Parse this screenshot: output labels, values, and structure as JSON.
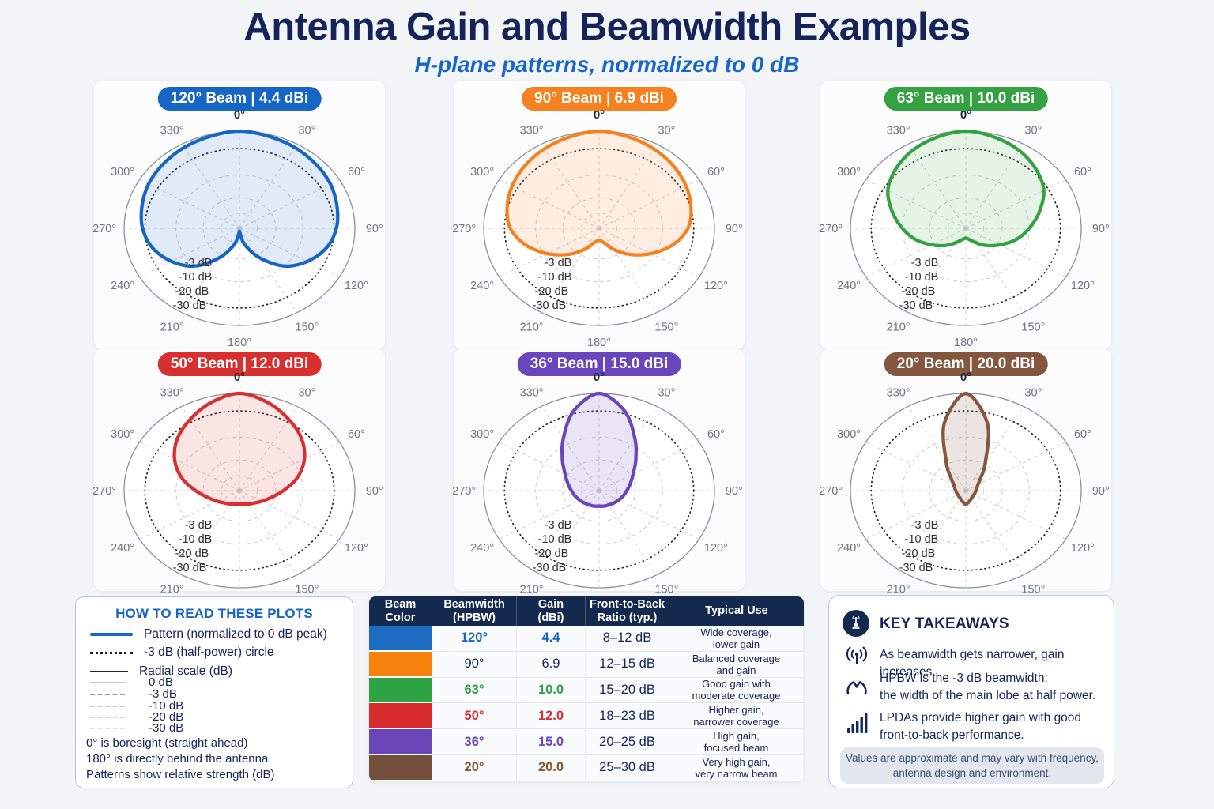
{
  "page": {
    "title": "Antenna Gain and Beamwidth Examples",
    "subtitle": "H-plane patterns, normalized to 0 dB",
    "background": "#f3f4f6"
  },
  "chart_data": {
    "type": "polar-patterns",
    "description": "Six normalized H-plane antenna patterns, 0 dB at outer ring",
    "angle_labels": [
      "0°",
      "30°",
      "60°",
      "90°",
      "120°",
      "150°",
      "180°",
      "210°",
      "240°",
      "270°",
      "300°",
      "330°"
    ],
    "ring_labels": [
      "-3 dB",
      "-10 dB",
      "-20 dB",
      "-30 dB"
    ],
    "ring_db": [
      -3,
      -10,
      -20,
      -30
    ],
    "ring_radii": [
      0.82,
      0.55,
      0.315,
      0.155
    ],
    "pattern_theta_step_deg": 15,
    "plots": [
      {
        "badge": "120° Beam | 4.4 dBi",
        "hpbw_deg": 120,
        "gain_dbi": 4.4,
        "color": "#1766c5",
        "fill": "rgba(23,102,197,0.13)",
        "show_180_label": true,
        "pattern_r": [
          1.0,
          0.98,
          0.96,
          0.935,
          0.91,
          0.875,
          0.84,
          0.78,
          0.68,
          0.55,
          0.35,
          0.17,
          0.03
        ]
      },
      {
        "badge": "90° Beam | 6.9 dBi",
        "hpbw_deg": 90,
        "gain_dbi": 6.9,
        "color": "#f68120",
        "fill": "rgba(246,129,32,0.14)",
        "show_180_label": true,
        "pattern_r": [
          1.0,
          0.975,
          0.945,
          0.91,
          0.87,
          0.825,
          0.77,
          0.66,
          0.52,
          0.38,
          0.25,
          0.15,
          0.12
        ]
      },
      {
        "badge": "63° Beam | 10.0 dBi",
        "hpbw_deg": 63,
        "gain_dbi": 10.0,
        "color": "#34a143",
        "fill": "rgba(52,161,67,0.12)",
        "show_180_label": true,
        "pattern_r": [
          1.0,
          0.97,
          0.925,
          0.86,
          0.78,
          0.66,
          0.55,
          0.45,
          0.34,
          0.25,
          0.17,
          0.12,
          0.1
        ]
      },
      {
        "badge": "50° Beam | 12.0 dBi",
        "hpbw_deg": 50,
        "gain_dbi": 12.0,
        "color": "#d63030",
        "fill": "rgba(214,48,48,0.13)",
        "show_180_label": false,
        "pattern_r": [
          1.0,
          0.94,
          0.85,
          0.76,
          0.65,
          0.52,
          0.38,
          0.28,
          0.22,
          0.18,
          0.16,
          0.145,
          0.14
        ]
      },
      {
        "badge": "36° Beam | 15.0 dBi",
        "hpbw_deg": 36,
        "gain_dbi": 15.0,
        "color": "#6a46be",
        "fill": "rgba(106,70,190,0.14)",
        "show_180_label": false,
        "pattern_r": [
          1.0,
          0.85,
          0.62,
          0.45,
          0.34,
          0.28,
          0.24,
          0.215,
          0.195,
          0.18,
          0.17,
          0.165,
          0.16
        ]
      },
      {
        "badge": "20° Beam | 20.0 dBi",
        "hpbw_deg": 20,
        "gain_dbi": 20.0,
        "color": "#85573f",
        "fill": "rgba(133,87,63,0.16)",
        "show_180_label": false,
        "pattern_r": [
          1.0,
          0.72,
          0.34,
          0.18,
          0.12,
          0.1,
          0.088,
          0.083,
          0.082,
          0.085,
          0.095,
          0.115,
          0.145
        ]
      }
    ]
  },
  "legend": {
    "title": "HOW TO READ THESE PLOTS",
    "items": [
      {
        "label": "Pattern (normalized to 0 dB peak)"
      },
      {
        "label": "-3 dB (half-power) circle"
      },
      {
        "label": "Radial scale (dB)"
      }
    ],
    "scale_rows": [
      {
        "label": "0 dB"
      },
      {
        "label": "-3 dB"
      },
      {
        "label": "-10 dB"
      },
      {
        "label": "-20 dB"
      },
      {
        "label": "-30 dB"
      }
    ],
    "footnotes": [
      "0° is boresight (straight ahead)",
      "180° is directly behind the antenna",
      "Patterns show relative strength (dB)"
    ]
  },
  "table": {
    "headers": [
      "Beam\nColor",
      "Beamwidth\n(HPBW)",
      "Gain\n(dBi)",
      "Front-to-Back\nRatio (typ.)",
      "Typical Use"
    ],
    "rows": [
      {
        "swatch": "#1e6bc2",
        "beamwidth": "120°",
        "gain": "4.4",
        "value_color": "#1766c5",
        "bold": true,
        "f2b": "8–12 dB",
        "use": "Wide coverage,\nlower gain"
      },
      {
        "swatch": "#f5820d",
        "beamwidth": "90°",
        "gain": "6.9",
        "value_color": "#15235b",
        "bold": false,
        "f2b": "12–15 dB",
        "use": "Balanced coverage\nand gain"
      },
      {
        "swatch": "#2ea344",
        "beamwidth": "63°",
        "gain": "10.0",
        "value_color": "#2fa145",
        "bold": true,
        "f2b": "15–20 dB",
        "use": "Good gain with\nmoderate coverage"
      },
      {
        "swatch": "#d92c2c",
        "beamwidth": "50°",
        "gain": "12.0",
        "value_color": "#d63030",
        "bold": true,
        "f2b": "18–23 dB",
        "use": "Higher gain,\nnarrower coverage"
      },
      {
        "swatch": "#6a45b8",
        "beamwidth": "36°",
        "gain": "15.0",
        "value_color": "#6a46be",
        "bold": true,
        "f2b": "20–25 dB",
        "use": "High gain,\nfocused beam"
      },
      {
        "swatch": "#74503c",
        "beamwidth": "20°",
        "gain": "20.0",
        "value_color": "#8a5527",
        "bold": true,
        "f2b": "25–30 dB",
        "use": "Very high gain,\nvery narrow beam"
      }
    ]
  },
  "takeaways": {
    "title": "KEY TAKEAWAYS",
    "items": [
      {
        "icon": "broadcast-waves-icon",
        "text": "As beamwidth gets narrower, gain increases."
      },
      {
        "icon": "gauge-icon",
        "text": "HPBW is the -3 dB beamwidth:\nthe width of the main lobe at half power."
      },
      {
        "icon": "signal-bars-icon",
        "text": "LPDAs provide higher gain with good\nfront-to-back performance."
      }
    ],
    "note": "Values are approximate and may vary with frequency,\nantenna design and environment."
  }
}
